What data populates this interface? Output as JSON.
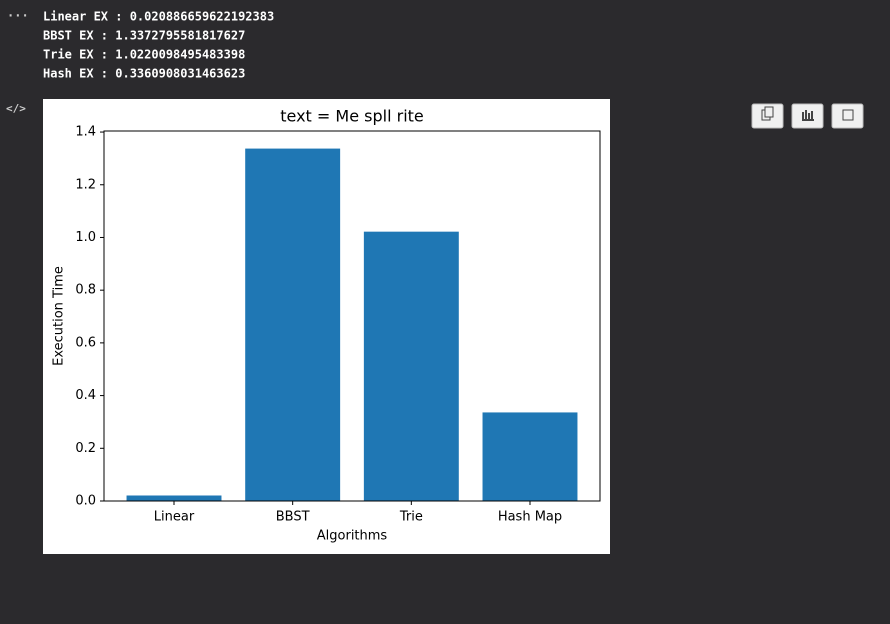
{
  "outputs": [
    "Linear EX :  0.020886659622192383",
    "BBST EX :  1.3372795581817627",
    "Trie EX :  1.0220098495483398",
    "Hash EX :  0.3360908031463623"
  ],
  "chart_data": {
    "type": "bar",
    "title": "text = Me spll rite",
    "x_label": "Algorithms",
    "y_label": "Execution Time",
    "categories": [
      "Linear",
      "BBST",
      "Trie",
      "Hash Map"
    ],
    "values": [
      0.020886659622192383,
      1.3372795581817627,
      1.0220098495483398,
      0.3360908031463623
    ],
    "color": "#1f77b4",
    "ylim": [
      0,
      1.404
    ],
    "yticks": [
      {
        "value": 0,
        "label": "0.0"
      },
      0.2,
      0.4,
      0.6,
      0.8,
      {
        "value": 1,
        "label": "1.0"
      },
      1.2,
      1.4
    ],
    "grid": false
  }
}
